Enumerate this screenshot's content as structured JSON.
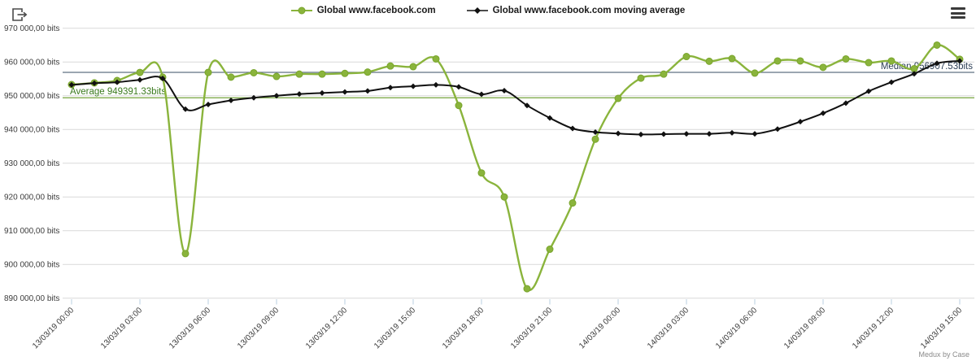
{
  "toolbar": {
    "export_icon": "export-icon",
    "menu_icon": "hamburger-menu-icon"
  },
  "legend": {
    "items": [
      {
        "label": "Global www.facebook.com",
        "marker": "circle",
        "color": "#8ab43c"
      },
      {
        "label": "Global www.facebook.com moving average",
        "marker": "diamond",
        "color": "#111111"
      }
    ]
  },
  "chart_data": {
    "type": "line",
    "title": "",
    "xlabel": "",
    "ylabel": "bits",
    "x_interval_hours": 1,
    "x_tick_labels": [
      "13/03/19 00:00",
      "13/03/19 03:00",
      "13/03/19 06:00",
      "13/03/19 09:00",
      "13/03/19 12:00",
      "13/03/19 15:00",
      "13/03/19 18:00",
      "13/03/19 21:00",
      "14/03/19 00:00",
      "14/03/19 03:00",
      "14/03/19 06:00",
      "14/03/19 09:00",
      "14/03/19 12:00",
      "14/03/19 15:00"
    ],
    "y_tick_labels": [
      "970 000,00 bits",
      "960 000,00 bits",
      "950 000,00 bits",
      "940 000,00 bits",
      "930 000,00 bits",
      "920 000,00 bits",
      "910 000,00 bits",
      "900 000,00 bits",
      "890 000,00 bits"
    ],
    "ylim": [
      890000,
      970000
    ],
    "y_gridline_step": 10000,
    "grid": true,
    "legend_position": "top-center",
    "series": [
      {
        "name": "Global www.facebook.com",
        "marker": "circle",
        "color": "#8ab43c",
        "values": [
          953300,
          953800,
          954500,
          956900,
          955500,
          903200,
          956900,
          955500,
          956800,
          955700,
          956400,
          956400,
          956600,
          957000,
          958800,
          958600,
          960900,
          947100,
          927100,
          920000,
          892800,
          904500,
          918200,
          937100,
          949200,
          955200,
          956400,
          961600,
          960200,
          961000,
          956700,
          960300,
          960300,
          958400,
          960900,
          959800,
          960300,
          958000,
          965000,
          960800
        ]
      },
      {
        "name": "Global www.facebook.com moving average",
        "marker": "diamond",
        "color": "#111111",
        "values": [
          953200,
          953700,
          954000,
          954700,
          955100,
          946000,
          947400,
          948600,
          949400,
          950000,
          950500,
          950800,
          951100,
          951400,
          952400,
          952800,
          953200,
          952600,
          950400,
          951500,
          947100,
          943400,
          940300,
          939200,
          938800,
          938500,
          938600,
          938700,
          938700,
          939000,
          938700,
          940100,
          942300,
          944800,
          947800,
          951300,
          954000,
          956500,
          959600,
          960300
        ]
      }
    ],
    "annotations": [
      {
        "name": "average",
        "label": "Average 949391.33bits",
        "value": 949391.33,
        "side": "left"
      },
      {
        "name": "median",
        "label": "Median 956907.53bits",
        "value": 956907.53,
        "side": "right"
      }
    ]
  },
  "footer": {
    "branding": "Medux by Case"
  },
  "colors": {
    "grid": "#d9d9d9",
    "tick": "#b9cfe0",
    "axis_text": "#3c3c3c",
    "series_green": "#8ab43c",
    "series_green_stroke": "#79a52c",
    "series_black": "#111111",
    "average_line": "#74a53c",
    "average_text": "#3a7a1e",
    "median_line": "#5f7282",
    "median_text": "#2e4057"
  }
}
